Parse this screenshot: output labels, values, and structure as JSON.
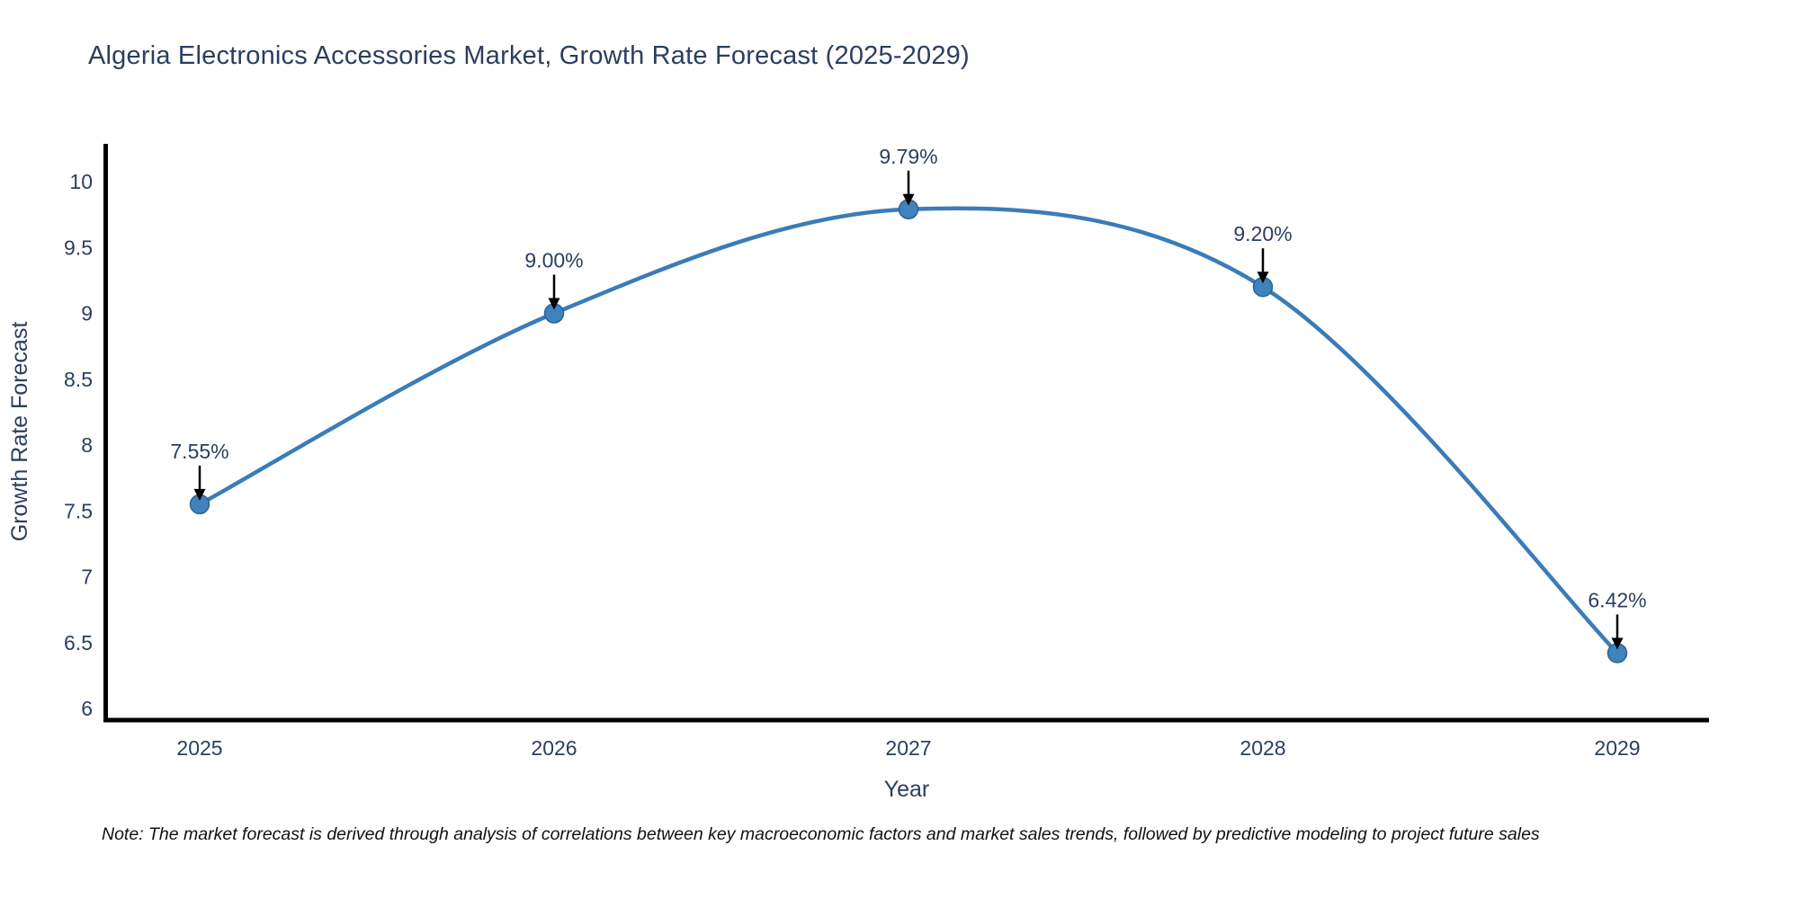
{
  "title": "Algeria Electronics Accessories Market, Growth Rate Forecast (2025-2029)",
  "footnote": "Note: The market forecast is derived through analysis of correlations between key macroeconomic factors and market sales trends, followed by predictive modeling to project future sales",
  "chart_data": {
    "type": "line",
    "title": "Algeria Electronics Accessories Market, Growth Rate Forecast (2025-2029)",
    "xlabel": "Year",
    "ylabel": "Growth Rate Forecast",
    "x": [
      2025,
      2026,
      2027,
      2028,
      2029
    ],
    "series": [
      {
        "name": "Growth Rate Forecast",
        "values": [
          7.55,
          9.0,
          9.79,
          9.2,
          6.42
        ]
      }
    ],
    "annotations": [
      "7.55%",
      "9.00%",
      "9.79%",
      "9.20%",
      "6.42%"
    ],
    "xtick_labels": [
      "2025",
      "2026",
      "2027",
      "2028",
      "2029"
    ],
    "yticks": [
      6,
      6.5,
      7,
      7.5,
      8,
      8.5,
      9,
      9.5,
      10
    ],
    "ytick_labels": [
      "6",
      "6.5",
      "7",
      "7.5",
      "8",
      "8.5",
      "9",
      "9.5",
      "10"
    ],
    "ylim": [
      5.92,
      10.42
    ],
    "grid": false,
    "legend_position": "none",
    "line_shape": "spline",
    "colors": {
      "line": "#3b7cb8",
      "marker": "#3f82bd",
      "marker_edge": "#2d648f",
      "axis": "#000000",
      "tick_text": "#2a3f5f",
      "annotation_text": "#2a3f5f",
      "annotation_arrow": "#000000",
      "background": "#ffffff"
    }
  }
}
